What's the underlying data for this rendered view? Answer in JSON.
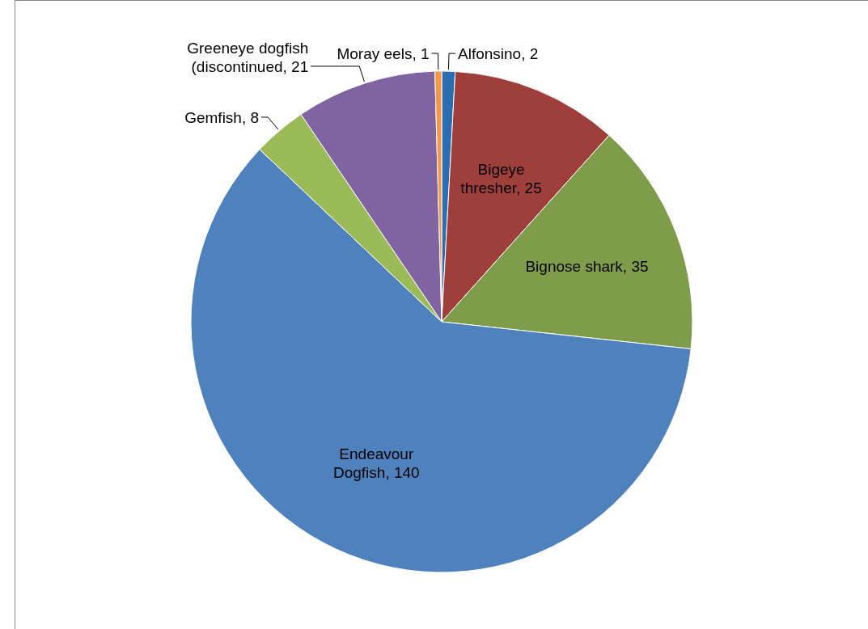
{
  "chart_data": {
    "type": "pie",
    "categories": [
      "Alfonsino",
      "Bigeye thresher",
      "Bignose shark",
      "Endeavour Dogfish",
      "Gemfish",
      "Greeneye dogfish (discontinued",
      "Moray eels"
    ],
    "values": [
      2,
      25,
      35,
      140,
      8,
      21,
      1
    ],
    "value_labels": [
      ", 2",
      ", 25",
      ", 35",
      ", 140",
      ", 8",
      ", 21",
      ", 1"
    ],
    "colors": [
      "#2c6cb0",
      "#9e3f3c",
      "#7f9c4a",
      "#4f81bd",
      "#9bbb59",
      "#8064a2",
      "#f79646"
    ],
    "legend": false
  }
}
